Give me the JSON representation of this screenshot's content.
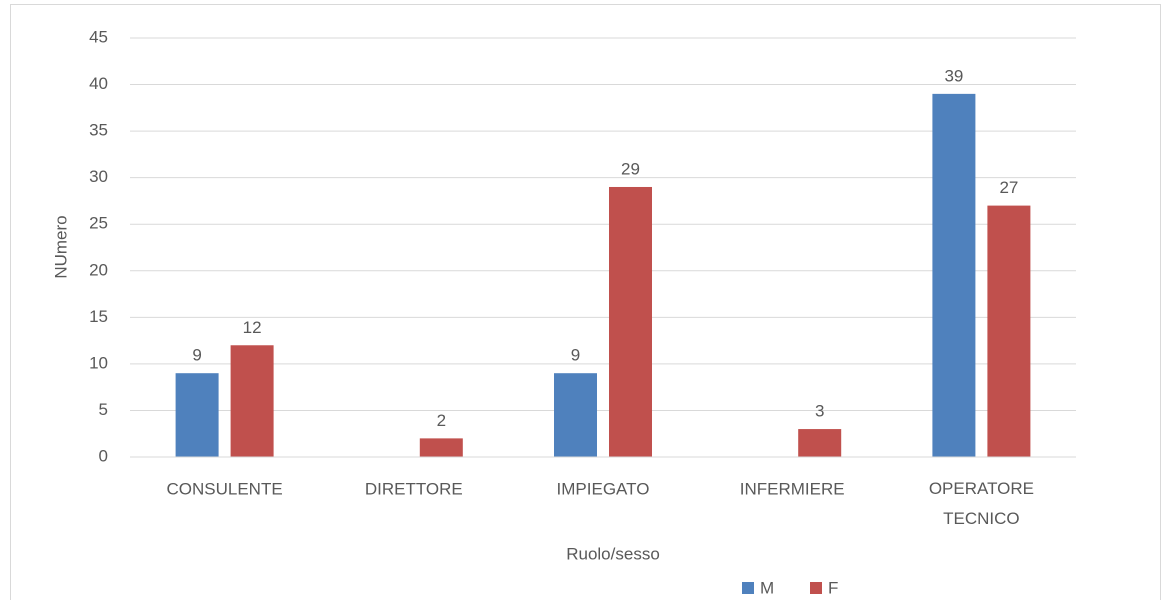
{
  "chart_data": {
    "type": "bar",
    "categories": [
      "CONSULENTE",
      "DIRETTORE",
      "IMPIEGATO",
      "INFERMIERE",
      "OPERATORE TECNICO"
    ],
    "series": [
      {
        "name": "M",
        "color": "#4f81bd",
        "values": [
          9,
          null,
          9,
          null,
          39
        ]
      },
      {
        "name": "F",
        "color": "#c0504d",
        "values": [
          12,
          2,
          29,
          3,
          27
        ]
      }
    ],
    "ylim": [
      0,
      45
    ],
    "yticks": [
      0,
      5,
      10,
      15,
      20,
      25,
      30,
      35,
      40,
      45
    ],
    "y_label": "NUmero",
    "x_label": "Ruolo/sesso",
    "grid": true,
    "legend": "bottom"
  }
}
